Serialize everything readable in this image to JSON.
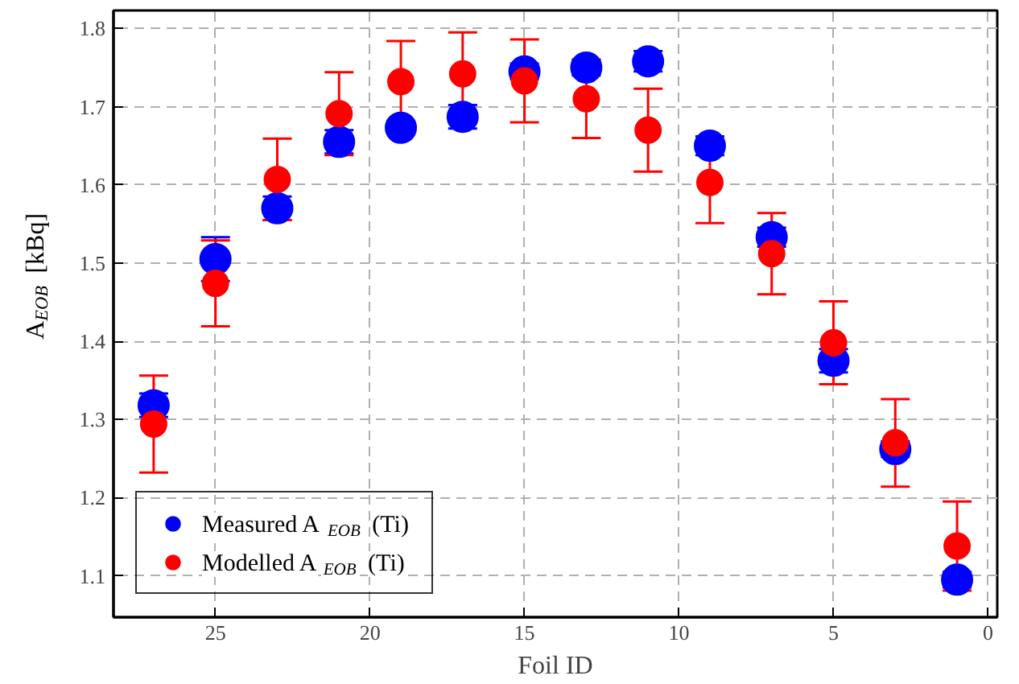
{
  "chart_data": {
    "type": "scatter",
    "xlabel": "Foil ID",
    "ylabel": "A$_{EOB}$ [kBq]",
    "x": [
      27,
      25,
      23,
      21,
      19,
      17,
      15,
      13,
      11,
      9,
      7,
      5,
      3,
      1
    ],
    "series": [
      {
        "name": "Measured A$_{EOB}$ (Ti)",
        "color": "#0000ff",
        "values": [
          1.318,
          1.505,
          1.57,
          1.655,
          1.673,
          1.687,
          1.745,
          1.75,
          1.758,
          1.65,
          1.533,
          1.375,
          1.262,
          1.095
        ],
        "errors": [
          0.015,
          0.028,
          0.015,
          0.015,
          0.008,
          0.015,
          0.01,
          0.01,
          0.013,
          0.012,
          0.012,
          0.015,
          0.01,
          0.01
        ]
      },
      {
        "name": "Modelled A$_{EOB}$ (Ti)",
        "color": "#ff0000",
        "values": [
          1.294,
          1.474,
          1.607,
          1.691,
          1.732,
          1.742,
          1.733,
          1.71,
          1.67,
          1.603,
          1.512,
          1.398,
          1.27,
          1.138
        ],
        "errors": [
          0.062,
          0.055,
          0.052,
          0.053,
          0.052,
          0.053,
          0.053,
          0.05,
          0.053,
          0.052,
          0.052,
          0.053,
          0.056,
          0.057
        ]
      }
    ],
    "xlim": [
      28.3,
      -0.3
    ],
    "xticks": [
      25,
      20,
      15,
      10,
      5,
      0
    ],
    "ylim": [
      1.047,
      1.823
    ],
    "yticks": [
      1.1,
      1.2,
      1.3,
      1.4,
      1.5,
      1.6,
      1.7,
      1.8
    ],
    "grid": true,
    "legend": "bottom left",
    "marker": "circle"
  }
}
